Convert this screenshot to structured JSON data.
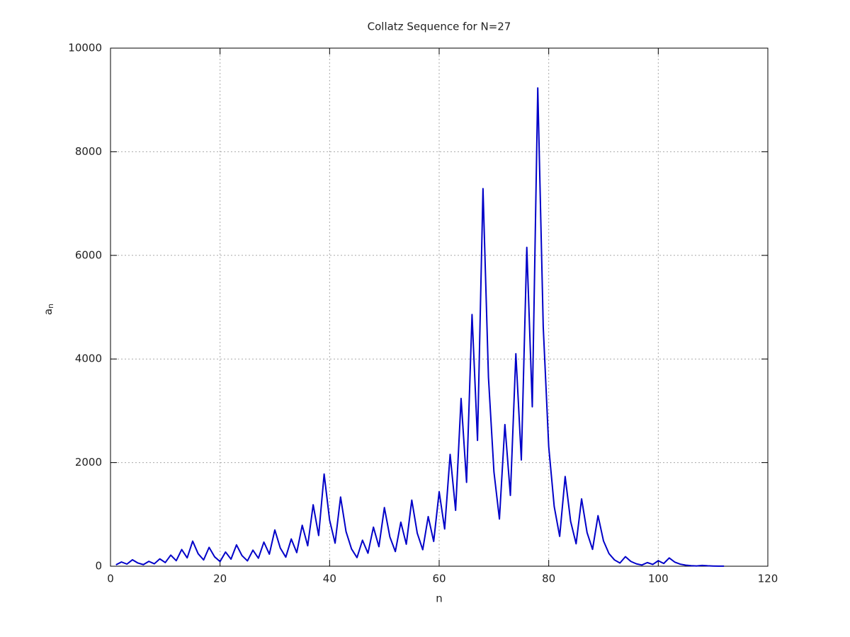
{
  "chart_data": {
    "type": "line",
    "title": "Collatz Sequence for N=27",
    "xlabel": "n",
    "ylabel": "a",
    "ylabel_subscript": "n",
    "x": [
      1,
      2,
      3,
      4,
      5,
      6,
      7,
      8,
      9,
      10,
      11,
      12,
      13,
      14,
      15,
      16,
      17,
      18,
      19,
      20,
      21,
      22,
      23,
      24,
      25,
      26,
      27,
      28,
      29,
      30,
      31,
      32,
      33,
      34,
      35,
      36,
      37,
      38,
      39,
      40,
      41,
      42,
      43,
      44,
      45,
      46,
      47,
      48,
      49,
      50,
      51,
      52,
      53,
      54,
      55,
      56,
      57,
      58,
      59,
      60,
      61,
      62,
      63,
      64,
      65,
      66,
      67,
      68,
      69,
      70,
      71,
      72,
      73,
      74,
      75,
      76,
      77,
      78,
      79,
      80,
      81,
      82,
      83,
      84,
      85,
      86,
      87,
      88,
      89,
      90,
      91,
      92,
      93,
      94,
      95,
      96,
      97,
      98,
      99,
      100,
      101,
      102,
      103,
      104,
      105,
      106,
      107,
      108,
      109,
      110,
      111,
      112
    ],
    "values": [
      27,
      82,
      41,
      124,
      62,
      31,
      94,
      47,
      142,
      71,
      214,
      107,
      322,
      161,
      484,
      242,
      121,
      364,
      182,
      91,
      274,
      137,
      412,
      206,
      103,
      310,
      155,
      466,
      233,
      700,
      350,
      175,
      526,
      263,
      790,
      395,
      1186,
      593,
      1780,
      890,
      445,
      1336,
      668,
      334,
      167,
      502,
      251,
      754,
      377,
      1132,
      566,
      283,
      850,
      425,
      1276,
      638,
      319,
      958,
      479,
      1438,
      719,
      2158,
      1079,
      3238,
      1619,
      4858,
      2429,
      7288,
      3644,
      1822,
      911,
      2734,
      1367,
      4102,
      2051,
      6154,
      3077,
      9232,
      4616,
      2308,
      1154,
      577,
      1732,
      866,
      433,
      1300,
      650,
      325,
      976,
      488,
      244,
      122,
      61,
      184,
      92,
      46,
      23,
      70,
      35,
      106,
      53,
      160,
      80,
      40,
      20,
      10,
      5,
      16,
      8,
      4,
      2,
      1
    ],
    "color": "#0000c8",
    "xlim": [
      0,
      120
    ],
    "xticks": [
      0,
      20,
      40,
      60,
      80,
      100,
      120
    ],
    "ylim": [
      0,
      10000
    ],
    "yticks": [
      0,
      2000,
      4000,
      6000,
      8000,
      10000
    ],
    "grid": true
  }
}
